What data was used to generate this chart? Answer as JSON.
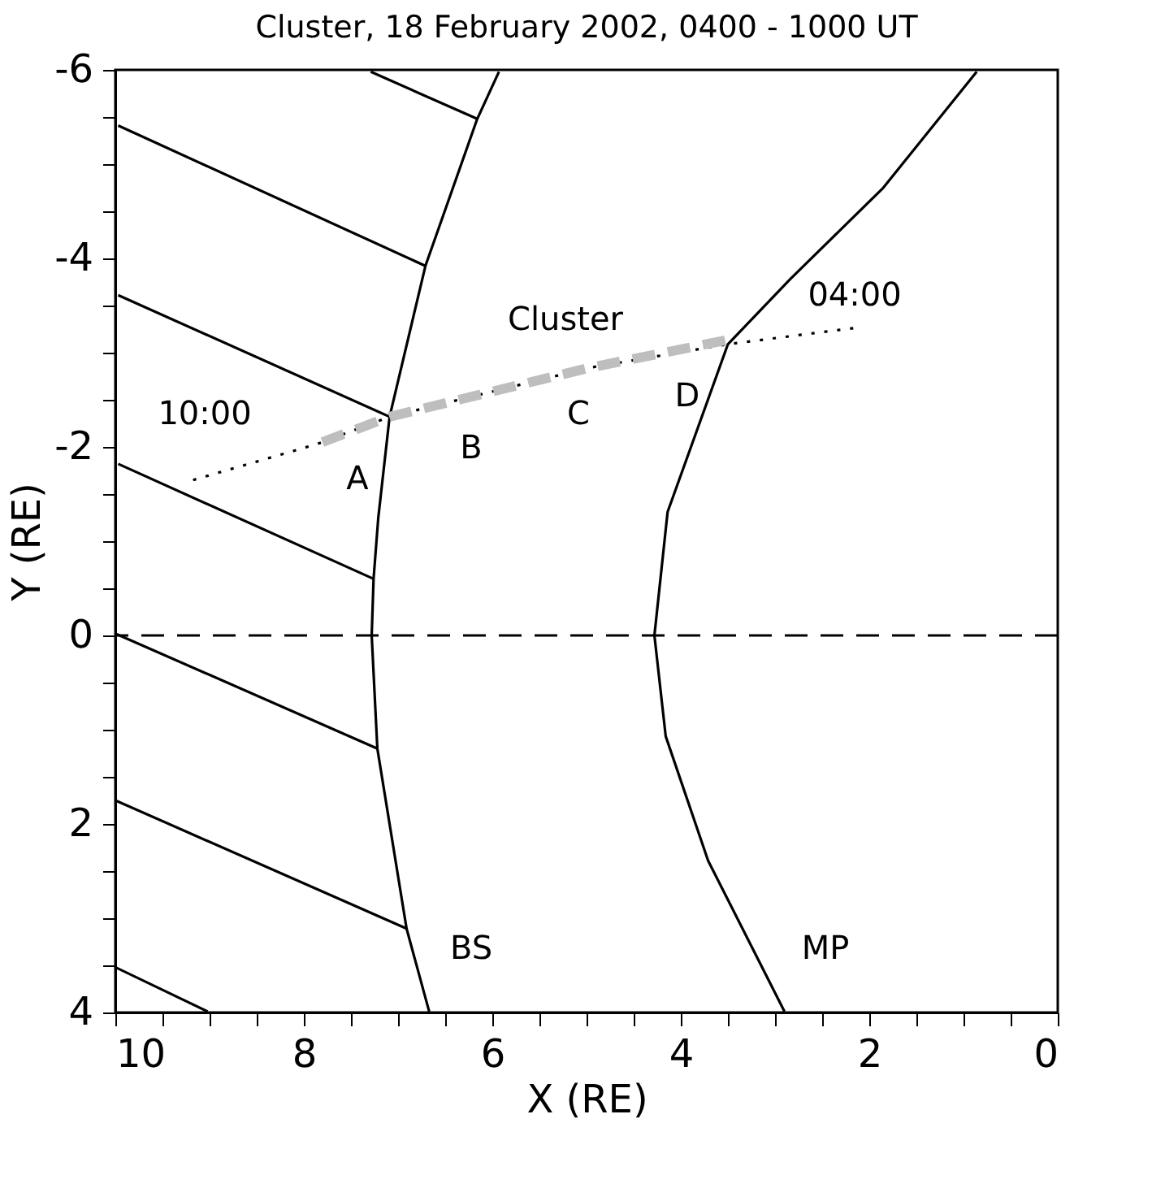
{
  "chart_data": {
    "type": "line",
    "title": "Cluster, 18 February 2002, 0400 - 1000 UT",
    "xlabel": "X (RE)",
    "ylabel": "Y (RE)",
    "xlim": [
      10,
      0
    ],
    "ylim": [
      4,
      -6
    ],
    "xticks": [
      10,
      {
        "value": 9.5,
        "label": null
      },
      {
        "value": 9,
        "label": null
      },
      {
        "value": 8.5,
        "label": null
      },
      8,
      {
        "value": 7.5,
        "label": null
      },
      {
        "value": 7,
        "label": null
      },
      {
        "value": 6.5,
        "label": null
      },
      6,
      {
        "value": 5.5,
        "label": null
      },
      {
        "value": 5,
        "label": null
      },
      {
        "value": 4.5,
        "label": null
      },
      4,
      {
        "value": 3.5,
        "label": null
      },
      {
        "value": 3,
        "label": null
      },
      {
        "value": 2.5,
        "label": null
      },
      2,
      {
        "value": 1.5,
        "label": null
      },
      {
        "value": 1,
        "label": null
      },
      {
        "value": 0.5,
        "label": null
      },
      0
    ],
    "yticks": [
      -6,
      {
        "value": -5.5,
        "label": null
      },
      {
        "value": -5,
        "label": null
      },
      {
        "value": -4.5,
        "label": null
      },
      -4,
      {
        "value": -3.5,
        "label": null
      },
      {
        "value": -3,
        "label": null
      },
      {
        "value": -2.5,
        "label": null
      },
      -2,
      {
        "value": -1.5,
        "label": null
      },
      {
        "value": -1,
        "label": null
      },
      {
        "value": -0.5,
        "label": null
      },
      0,
      {
        "value": 0.5,
        "label": null
      },
      {
        "value": 1,
        "label": null
      },
      {
        "value": 1.5,
        "label": null
      },
      2,
      {
        "value": 2.5,
        "label": null
      },
      {
        "value": 3,
        "label": null
      },
      {
        "value": 3.5,
        "label": null
      },
      4
    ],
    "grid": false,
    "series": [
      {
        "color": "#000000",
        "line_style": "solid",
        "x": [
          5.93,
          6.16,
          6.71,
          7.09,
          7.21,
          7.26,
          7.28,
          7.22,
          6.91,
          6.67
        ],
        "values": [
          -5.98,
          -5.48,
          -3.92,
          -2.32,
          -1.25,
          -0.6,
          0,
          1.2,
          3.11,
          3.99
        ]
      },
      {
        "color": "#000000",
        "line_style": "solid",
        "x": [
          0.86,
          1.86,
          2.84,
          3.5,
          4.14,
          4.28,
          4.16,
          3.71,
          2.9
        ],
        "values": [
          -5.98,
          -4.74,
          -3.78,
          -3.09,
          -1.31,
          0,
          1.07,
          2.39,
          3.99
        ]
      },
      {
        "color": "#000000",
        "line_style": "solid",
        "x": [
          6.16,
          7.29
        ],
        "values": [
          -5.48,
          -5.98
        ]
      },
      {
        "color": "#000000",
        "line_style": "solid",
        "x": [
          6.71,
          9.97
        ],
        "values": [
          -3.92,
          -5.41
        ]
      },
      {
        "color": "#000000",
        "line_style": "solid",
        "x": [
          7.09,
          9.97
        ],
        "values": [
          -2.32,
          -3.61
        ]
      },
      {
        "color": "#000000",
        "line_style": "solid",
        "x": [
          7.26,
          9.97
        ],
        "values": [
          -0.6,
          -1.82
        ]
      },
      {
        "color": "#000000",
        "line_style": "solid",
        "x": [
          7.22,
          10
        ],
        "values": [
          1.2,
          -0.02
        ]
      },
      {
        "color": "#000000",
        "line_style": "solid",
        "x": [
          6.91,
          10
        ],
        "values": [
          3.11,
          1.75
        ]
      },
      {
        "color": "#000000",
        "line_style": "solid",
        "x": [
          9.02,
          10
        ],
        "values": [
          3.99,
          3.52
        ]
      },
      {
        "color": "#000000",
        "line_style": "dotted",
        "x": [
          2.17,
          3.5,
          4.97,
          7.09,
          7.86,
          9.24
        ],
        "values": [
          -3.26,
          -3.09,
          -2.84,
          -2.32,
          -2.03,
          -1.63
        ]
      },
      {
        "color": "#bebebe",
        "line_style": "dashed",
        "x": [
          3.53,
          4.97,
          7.09,
          7.86
        ],
        "values": [
          -3.13,
          -2.84,
          -2.32,
          -2.03
        ]
      }
    ],
    "ref_lines": [
      {
        "axis": "y",
        "value": 0,
        "color": "#000000",
        "line_style": "dashed"
      }
    ],
    "annotations": [
      "A",
      "B",
      "C",
      "D",
      "Cluster",
      "04:00",
      "10:00",
      "BS",
      "MP"
    ]
  }
}
